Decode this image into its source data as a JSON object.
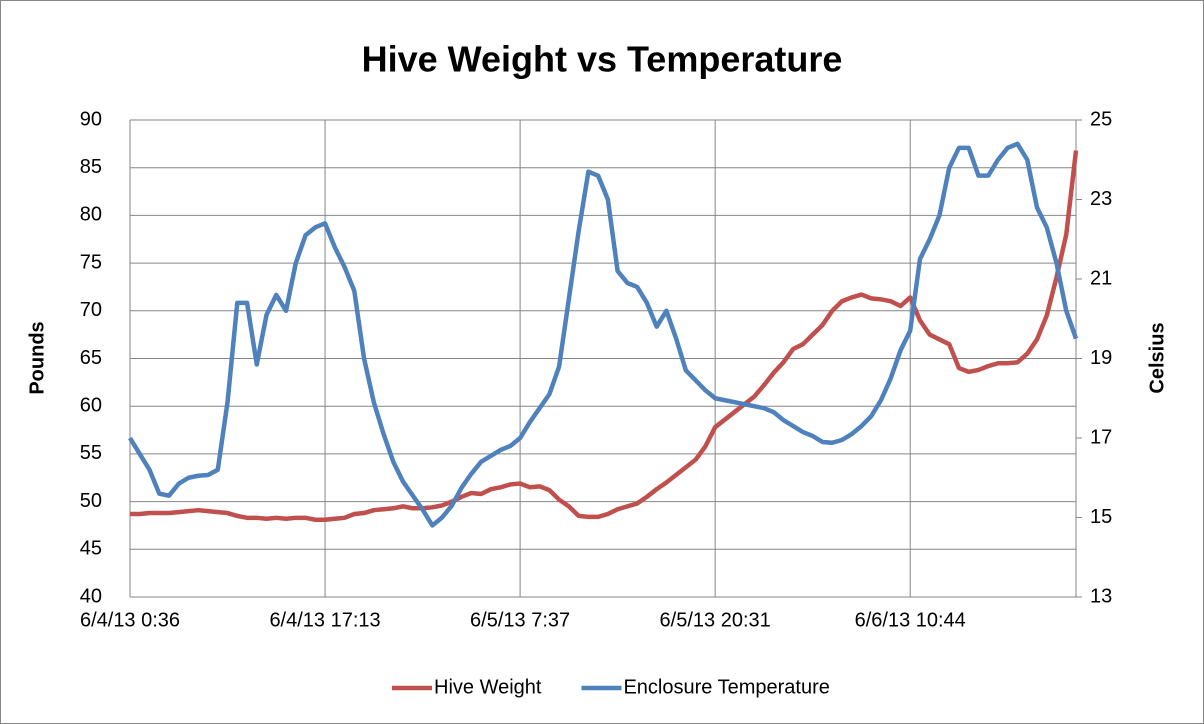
{
  "chart_data": {
    "type": "line",
    "title": "Hive Weight vs Temperature",
    "y_label": "Pounds",
    "y2_label": "Celsius",
    "categories": [
      "6/4/13 0:36",
      null,
      null,
      null,
      null,
      null,
      null,
      null,
      null,
      null,
      null,
      null,
      null,
      null,
      null,
      null,
      null,
      null,
      null,
      null,
      "6/4/13 17:13",
      null,
      null,
      null,
      null,
      null,
      null,
      null,
      null,
      null,
      null,
      null,
      null,
      null,
      null,
      null,
      null,
      null,
      null,
      null,
      "6/5/13 7:37",
      null,
      null,
      null,
      null,
      null,
      null,
      null,
      null,
      null,
      null,
      null,
      null,
      null,
      null,
      null,
      null,
      null,
      null,
      null,
      "6/5/13 20:31",
      null,
      null,
      null,
      null,
      null,
      null,
      null,
      null,
      null,
      null,
      null,
      null,
      null,
      null,
      null,
      null,
      null,
      null,
      null,
      "6/6/13 10:44",
      null,
      null,
      null,
      null,
      null,
      null,
      null,
      null,
      null,
      null,
      null,
      null,
      null,
      null,
      null,
      null,
      null
    ],
    "series": [
      {
        "name": "Hive Weight",
        "color": "#c0504d",
        "values": [
          48.7,
          48.7,
          48.8,
          48.8,
          48.8,
          48.9,
          49,
          49.1,
          49,
          48.9,
          48.8,
          48.5,
          48.3,
          48.3,
          48.2,
          48.3,
          48.2,
          48.3,
          48.3,
          48.1,
          48.1,
          48.2,
          48.3,
          48.7,
          48.8,
          49.1,
          49.2,
          49.3,
          49.5,
          49.3,
          49.3,
          49.4,
          49.6,
          50,
          50.5,
          50.9,
          50.8,
          51.3,
          51.5,
          51.8,
          51.9,
          51.5,
          51.6,
          51.2,
          50.2,
          49.5,
          48.5,
          48.4,
          48.4,
          48.7,
          49.2,
          49.5,
          49.8,
          50.5,
          51.3,
          52,
          52.8,
          53.6,
          54.4,
          55.8,
          57.8,
          58.6,
          59.4,
          60.2,
          61,
          62.2,
          63.5,
          64.6,
          66,
          66.5,
          67.5,
          68.5,
          70,
          71,
          71.4,
          71.7,
          71.3,
          71.2,
          71,
          70.5,
          71.4,
          69,
          67.5,
          67,
          66.5,
          64,
          63.6,
          63.8,
          64.2,
          64.5,
          64.5,
          64.6,
          65.5,
          67,
          69.5,
          73.5,
          78,
          86.8
        ]
      },
      {
        "name": "Enclosure Temperature",
        "color": "#4f81bd",
        "axis": "y2",
        "values": [
          17.0,
          16.6,
          16.2,
          15.6,
          15.55,
          15.85,
          16.0,
          16.05,
          16.07,
          16.2,
          17.9,
          20.4,
          20.4,
          18.85,
          20.1,
          20.6,
          20.2,
          21.4,
          22.1,
          22.3,
          22.4,
          21.8,
          21.3,
          20.7,
          19.0,
          17.9,
          17.1,
          16.4,
          15.9,
          15.55,
          15.2,
          14.8,
          15.0,
          15.3,
          15.75,
          16.1,
          16.4,
          16.55,
          16.7,
          16.8,
          17.0,
          17.4,
          17.75,
          18.1,
          18.8,
          20.5,
          22.2,
          23.7,
          23.6,
          23.0,
          21.2,
          20.9,
          20.8,
          20.4,
          19.8,
          20.2,
          19.5,
          18.7,
          18.45,
          18.2,
          18.0,
          17.95,
          17.9,
          17.85,
          17.8,
          17.75,
          17.65,
          17.45,
          17.3,
          17.15,
          17.05,
          16.9,
          16.88,
          16.95,
          17.1,
          17.3,
          17.55,
          17.95,
          18.5,
          19.2,
          19.7,
          21.5,
          22.0,
          22.6,
          23.8,
          24.3,
          24.3,
          23.6,
          23.6,
          24.0,
          24.3,
          24.4,
          24.0,
          22.8,
          22.3,
          21.4,
          20.2,
          19.5
        ]
      }
    ],
    "ylim": [
      40,
      90
    ],
    "yticks": [
      40,
      45,
      50,
      55,
      60,
      65,
      70,
      75,
      80,
      85,
      90
    ],
    "y2lim": [
      13,
      25
    ],
    "y2ticks": [
      13,
      15,
      17,
      19,
      21,
      23,
      25
    ],
    "grid": true,
    "xgrid": true,
    "legend": "bottom"
  }
}
